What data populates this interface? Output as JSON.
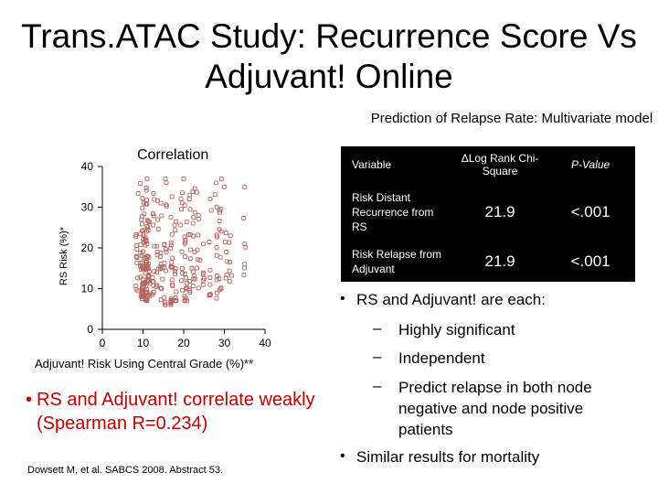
{
  "slide": {
    "title_line1": "Trans.ATAC Study: Recurrence Score Vs",
    "title_line2": "Adjuvant! Online",
    "citation": "Dowsett M, et al. SABCS 2008. Abstract 53."
  },
  "left": {
    "bullet": "RS and Adjuvant! correlate weakly (Spearman R=0.234)",
    "bullet_marker": "•"
  },
  "chart_data": {
    "type": "scatter",
    "title": "Correlation",
    "xlabel": "Adjuvant! Risk Using Central Grade (%)**",
    "ylabel": "RS Risk (%)*",
    "xlim": [
      0,
      40
    ],
    "ylim": [
      0,
      40
    ],
    "xticks": [
      "0",
      "10",
      "20",
      "30",
      "40"
    ],
    "yticks": [
      "0",
      "10",
      "20",
      "30",
      "40"
    ],
    "marker_color": "#b5655f",
    "columns": [
      {
        "x": 8.5,
        "ymin": 9,
        "ymax": 36,
        "count": 12
      },
      {
        "x": 9.5,
        "ymin": 7,
        "ymax": 38,
        "count": 14
      },
      {
        "x": 10,
        "ymin": 8,
        "ymax": 34,
        "count": 40
      },
      {
        "x": 10.8,
        "ymin": 7,
        "ymax": 36,
        "count": 40
      },
      {
        "x": 11.5,
        "ymin": 8,
        "ymax": 30,
        "count": 18
      },
      {
        "x": 12.5,
        "ymin": 8,
        "ymax": 37,
        "count": 14
      },
      {
        "x": 13.5,
        "ymin": 10,
        "ymax": 33,
        "count": 10
      },
      {
        "x": 14.5,
        "ymin": 7,
        "ymax": 36,
        "count": 12
      },
      {
        "x": 15.5,
        "ymin": 6,
        "ymax": 38,
        "count": 14
      },
      {
        "x": 17,
        "ymin": 6,
        "ymax": 38,
        "count": 22
      },
      {
        "x": 18,
        "ymin": 7,
        "ymax": 36,
        "count": 12
      },
      {
        "x": 19.5,
        "ymin": 8,
        "ymax": 35,
        "count": 10
      },
      {
        "x": 20.5,
        "ymin": 7,
        "ymax": 38,
        "count": 18
      },
      {
        "x": 21.5,
        "ymin": 9,
        "ymax": 34,
        "count": 10
      },
      {
        "x": 22.5,
        "ymin": 8,
        "ymax": 36,
        "count": 12
      },
      {
        "x": 23.5,
        "ymin": 10,
        "ymax": 34,
        "count": 8
      },
      {
        "x": 25,
        "ymin": 10,
        "ymax": 30,
        "count": 6
      },
      {
        "x": 26.5,
        "ymin": 8,
        "ymax": 36,
        "count": 10
      },
      {
        "x": 28,
        "ymin": 7,
        "ymax": 34,
        "count": 10
      },
      {
        "x": 29,
        "ymin": 9,
        "ymax": 38,
        "count": 12
      },
      {
        "x": 30.5,
        "ymin": 12,
        "ymax": 30,
        "count": 6
      },
      {
        "x": 31.5,
        "ymin": 11,
        "ymax": 35,
        "count": 5
      },
      {
        "x": 35,
        "ymin": 12,
        "ymax": 28,
        "count": 4
      }
    ],
    "extra_points": [
      {
        "x": 11,
        "y": 37
      },
      {
        "x": 15.5,
        "y": 37
      },
      {
        "x": 20,
        "y": 37
      },
      {
        "x": 21.5,
        "y": 33
      },
      {
        "x": 24,
        "y": 17
      },
      {
        "x": 30,
        "y": 35
      },
      {
        "x": 31.5,
        "y": 23
      },
      {
        "x": 35,
        "y": 35
      },
      {
        "x": 35,
        "y": 21
      },
      {
        "x": 35,
        "y": 16
      },
      {
        "x": 28,
        "y": 36
      },
      {
        "x": 22,
        "y": 15
      }
    ]
  },
  "table": {
    "title": "Prediction of Relapse Rate: Multivariate model",
    "headers": [
      "Variable",
      "ΔLog Rank Chi-Square",
      "P-Value"
    ],
    "rows": [
      {
        "variable": "Risk Distant Recurrence from RS",
        "chi": "21.9",
        "p": "<.001"
      },
      {
        "variable": "Risk Relapse from Adjuvant",
        "chi": "21.9",
        "p": "<.001"
      }
    ]
  },
  "right": {
    "bullet_marker": "•",
    "dash_marker": "–",
    "bullet1": "RS and Adjuvant! are each:",
    "sub1": "Highly significant",
    "sub2": "Independent",
    "sub3": "Predict relapse in both node negative and node positive patients",
    "bullet2": "Similar results for mortality"
  }
}
